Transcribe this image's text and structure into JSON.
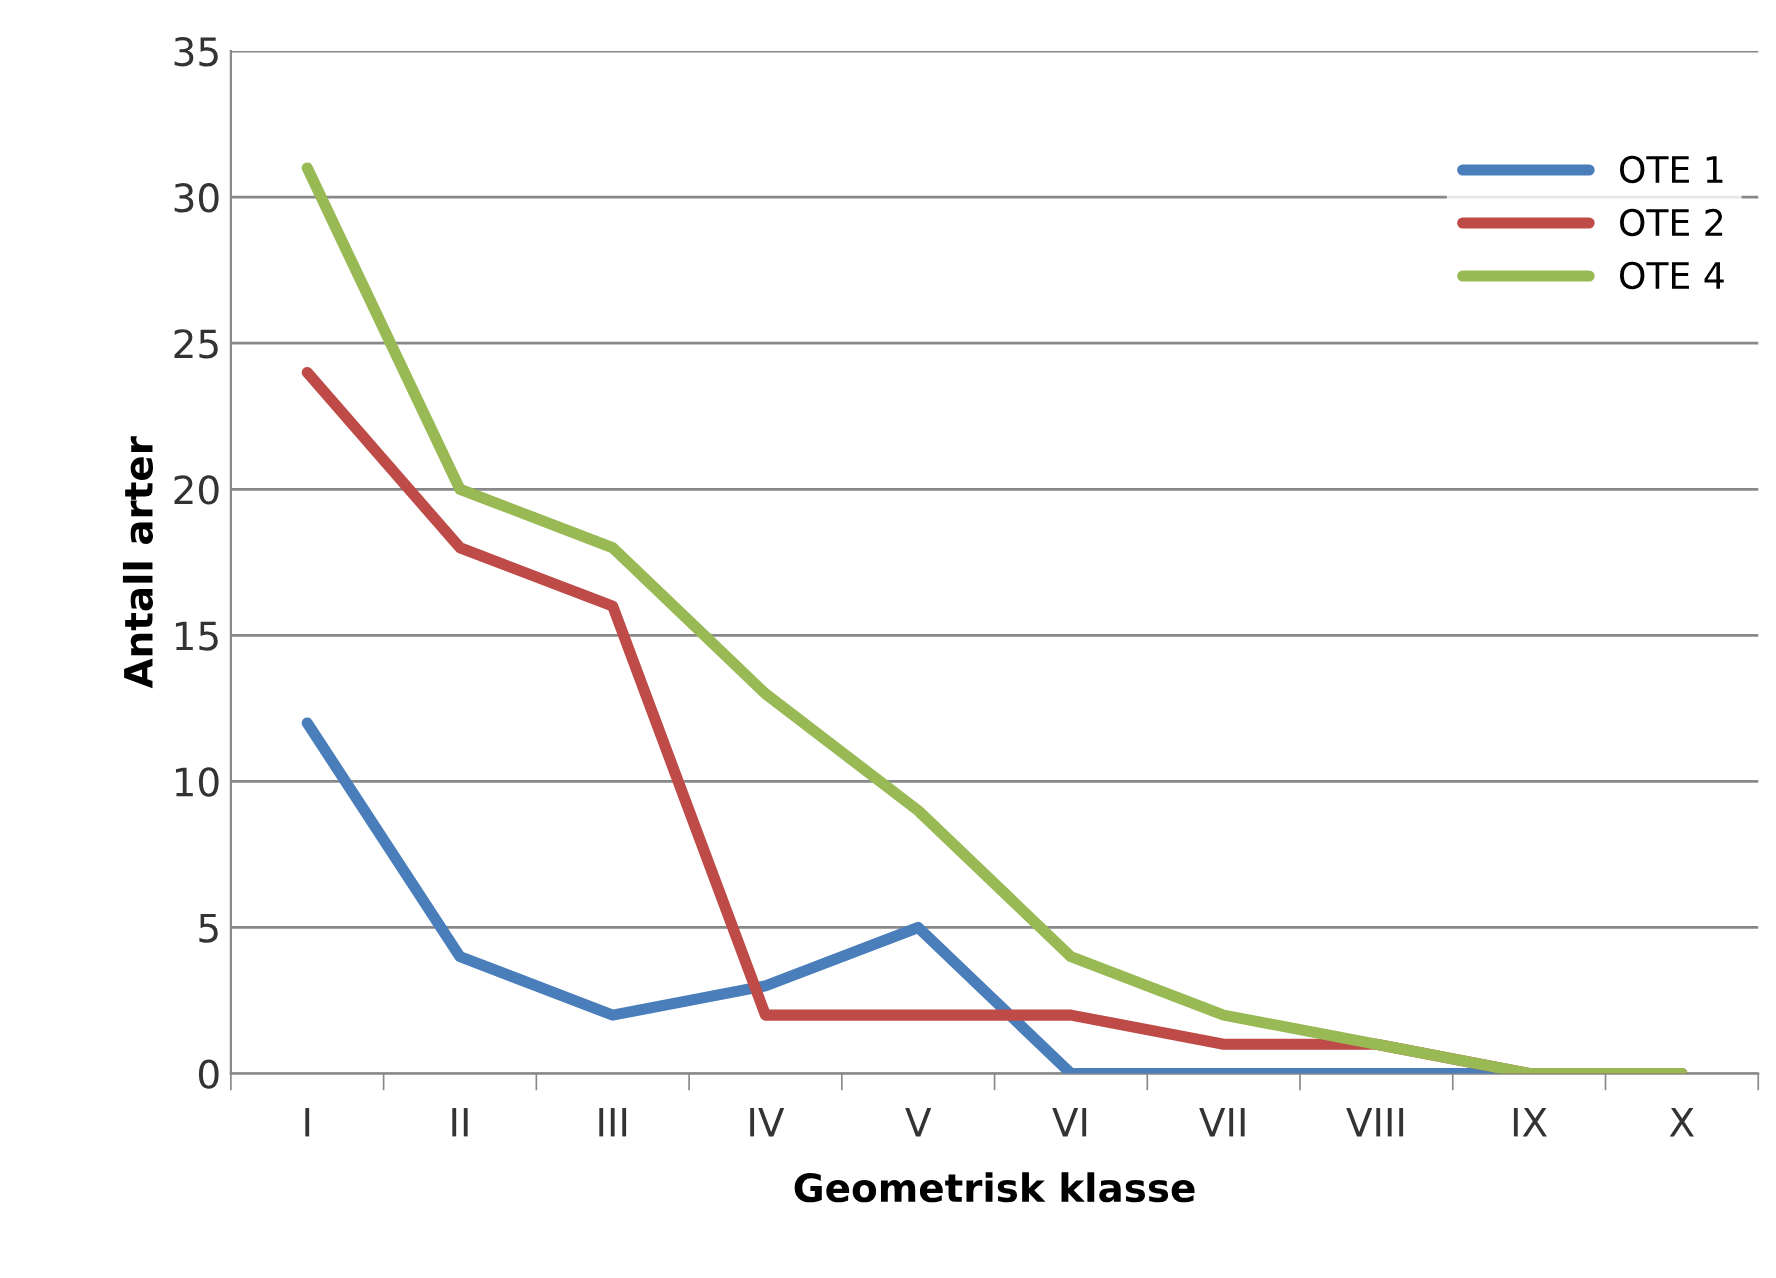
{
  "chart_data": {
    "type": "line",
    "xlabel": "Geometrisk klasse",
    "ylabel": "Antall arter",
    "categories": [
      "I",
      "II",
      "III",
      "IV",
      "V",
      "VI",
      "VII",
      "VIII",
      "IX",
      "X"
    ],
    "series": [
      {
        "name": "OTE 1",
        "color": "#4a7ebb",
        "values": [
          12,
          4,
          2,
          3,
          5,
          0,
          0,
          0,
          0,
          0
        ]
      },
      {
        "name": "OTE 2",
        "color": "#be4b48",
        "values": [
          24,
          18,
          16,
          2,
          2,
          2,
          1,
          1,
          0,
          0
        ]
      },
      {
        "name": "OTE 4",
        "color": "#98b954",
        "values": [
          31,
          20,
          18,
          13,
          9,
          4,
          2,
          1,
          0,
          0
        ]
      }
    ],
    "ylim": [
      0,
      35
    ],
    "yticks": [
      0,
      5,
      10,
      15,
      20,
      25,
      30,
      35
    ],
    "grid": "y",
    "legend": "top right",
    "marker": "none",
    "line_style": "solid"
  }
}
